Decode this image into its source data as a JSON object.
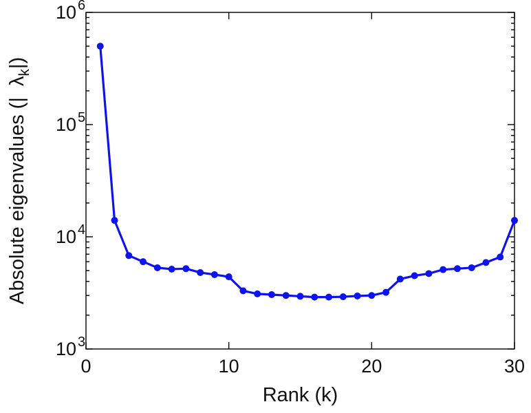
{
  "chart_data": {
    "type": "line",
    "title": "",
    "xlabel": "Rank (k)",
    "ylabel": "Absolute eigenvalues (|λk|)",
    "ylabel_parts": {
      "prefix": "Absolute eigenvalues (|",
      "gap": "  ",
      "symbol": "λ",
      "subscript": "k",
      "suffix": "|)"
    },
    "x": [
      1,
      2,
      3,
      4,
      5,
      6,
      7,
      8,
      9,
      10,
      11,
      12,
      13,
      14,
      15,
      16,
      17,
      18,
      19,
      20,
      21,
      22,
      23,
      24,
      25,
      26,
      27,
      28,
      29,
      30
    ],
    "y": [
      500000,
      14000,
      6800,
      6000,
      5300,
      5150,
      5200,
      4800,
      4600,
      4400,
      3300,
      3100,
      3050,
      3000,
      2950,
      2900,
      2900,
      2920,
      2970,
      3000,
      3200,
      4200,
      4500,
      4700,
      5100,
      5200,
      5300,
      5900,
      6600,
      14000
    ],
    "xlim": [
      0,
      30
    ],
    "ylim": [
      1000,
      1000000
    ],
    "yscale": "log",
    "x_ticks": [
      0,
      10,
      20,
      30
    ],
    "x_tick_labels": [
      "0",
      "10",
      "20",
      "30"
    ],
    "y_ticks": [
      1000,
      10000,
      100000,
      1000000
    ],
    "y_tick_labels": [
      {
        "base": "10",
        "exp": "3"
      },
      {
        "base": "10",
        "exp": "4"
      },
      {
        "base": "10",
        "exp": "5"
      },
      {
        "base": "10",
        "exp": "6"
      }
    ],
    "legend": null,
    "grid": false,
    "line_color": "#0d13ee",
    "marker": "circle",
    "marker_size": 5,
    "line_width": 3.2,
    "axis_color": "#000000",
    "background": "#ffffff"
  }
}
